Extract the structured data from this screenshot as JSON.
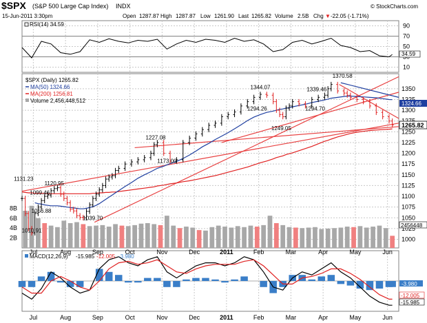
{
  "header": {
    "symbol": "$SPX",
    "name": "(S&P 500 Large Cap Index)",
    "exchange": "INDX",
    "datetime": "15-Jun-2011 3:30pm",
    "open_label": "Open",
    "open": "1287.87",
    "high_label": "High",
    "high": "1287.87",
    "low_label": "Low",
    "low": "1261.90",
    "last_label": "Last",
    "last": "1265.82",
    "volume_label": "Volume",
    "volume": "2.5B",
    "chg_label": "Chg",
    "chg": "-22.05 (-1.71%)",
    "chg_arrow": "▼",
    "brand": "© StockCharts.com"
  },
  "rsi_panel": {
    "label": "RSI(14) 34.59",
    "current_tag": "34.59",
    "ticks": [
      "90",
      "70",
      "50",
      "30",
      "10"
    ]
  },
  "price_panel": {
    "legend_main": "$SPX (Daily) 1265.82",
    "legend_ma50": "MA(50) 1324.66",
    "legend_ma200": "MA(200) 1256.81",
    "legend_volume": "Volume 2,456,448,512",
    "current_tag": "1265.82",
    "ma50_tag": "1324.66",
    "volume_tag": "2456448",
    "price_ticks": [
      "1350",
      "1325",
      "1300",
      "1275",
      "1250",
      "1225",
      "1200",
      "1175",
      "1150",
      "1125",
      "1100",
      "1075",
      "1050",
      "1025",
      "1000"
    ],
    "volume_ticks": [
      "8B",
      "6B",
      "4B",
      "2B"
    ],
    "annotations": [
      "1131.23",
      "1120.95",
      "1099.46",
      "1056.88",
      "1010.91",
      "1039.70",
      "1227.08",
      "1173.00",
      "1344.07",
      "1294.26",
      "1249.05",
      "1339.46",
      "1294.70",
      "1370.58"
    ]
  },
  "macd_panel": {
    "label": "MACD(12,26,9)",
    "macd_value": "-15.985",
    "signal_value": "-12.005",
    "hist_value": "-3.980",
    "tag_hist": "-3.980",
    "tag_signal": "-12.005",
    "tag_macd": "-15.985"
  },
  "x_axis": {
    "labels": [
      "Jul",
      "Aug",
      "Sep",
      "Oct",
      "Nov",
      "Dec",
      "2011",
      "Feb",
      "Mar",
      "Apr",
      "May",
      "Jun"
    ]
  },
  "colors": {
    "up": "#000000",
    "down": "#e02020",
    "ma50": "#1f3fa0",
    "ma200": "#e02020",
    "trend": "#e84040",
    "volume_up": "#a8a8a8",
    "volume_down": "#f08080",
    "hist": "#3a7ec8",
    "macd": "#000000",
    "signal": "#e02020",
    "chg": "#e02020"
  },
  "chart_data": {
    "type": "line",
    "title": "$SPX (S&P 500 Large Cap Index) INDX — Daily",
    "x_unit": "months since 1-Jul-2010",
    "xlim": [
      0,
      11.7
    ],
    "price": {
      "ylim": [
        980,
        1385
      ],
      "x": [
        0,
        0.1,
        0.2,
        0.3,
        0.4,
        0.5,
        0.6,
        0.7,
        0.8,
        0.9,
        1.0,
        1.1,
        1.2,
        1.3,
        1.4,
        1.5,
        1.6,
        1.7,
        1.8,
        1.9,
        2.0,
        2.1,
        2.2,
        2.3,
        2.4,
        2.5,
        2.6,
        2.7,
        2.8,
        2.9,
        3.0,
        3.2,
        3.4,
        3.6,
        3.8,
        4.0,
        4.1,
        4.2,
        4.4,
        4.6,
        4.8,
        5.0,
        5.2,
        5.4,
        5.6,
        5.8,
        6.0,
        6.2,
        6.4,
        6.6,
        6.8,
        7.0,
        7.2,
        7.4,
        7.6,
        7.8,
        7.9,
        8.0,
        8.1,
        8.2,
        8.3,
        8.4,
        8.6,
        8.8,
        9.0,
        9.2,
        9.4,
        9.5,
        9.6,
        9.8,
        10.0,
        10.1,
        10.2,
        10.4,
        10.6,
        10.8,
        11.0,
        11.2,
        11.4,
        11.5
      ],
      "close": [
        1095,
        1060,
        1025,
        1015,
        1060,
        1075,
        1090,
        1100,
        1103,
        1113,
        1118,
        1120,
        1105,
        1095,
        1085,
        1070,
        1066,
        1055,
        1051,
        1050,
        1065,
        1080,
        1095,
        1105,
        1115,
        1125,
        1140,
        1145,
        1148,
        1160,
        1165,
        1175,
        1180,
        1185,
        1190,
        1200,
        1220,
        1225,
        1200,
        1182,
        1185,
        1225,
        1235,
        1245,
        1255,
        1265,
        1270,
        1285,
        1290,
        1296,
        1310,
        1320,
        1330,
        1337,
        1335,
        1320,
        1300,
        1290,
        1285,
        1305,
        1310,
        1320,
        1315,
        1310,
        1325,
        1330,
        1335,
        1350,
        1360,
        1345,
        1340,
        1335,
        1330,
        1325,
        1320,
        1310,
        1295,
        1285,
        1275,
        1265.82
      ],
      "ma50": [
        null,
        null,
        null,
        null,
        1085,
        1083,
        1082,
        1080,
        1079,
        1078,
        1078,
        1078,
        1077,
        1076,
        1075,
        1074,
        1073,
        1072,
        1071,
        1071,
        1072,
        1074,
        1076,
        1079,
        1083,
        1088,
        1093,
        1098,
        1103,
        1108,
        1113,
        1123,
        1132,
        1142,
        1150,
        1157,
        1161,
        1165,
        1170,
        1176,
        1181,
        1188,
        1196,
        1205,
        1215,
        1223,
        1232,
        1240,
        1248,
        1257,
        1266,
        1276,
        1284,
        1290,
        1295,
        1298,
        1300,
        1302,
        1303,
        1305,
        1306,
        1308,
        1311,
        1314,
        1318,
        1321,
        1324,
        1326,
        1328,
        1330,
        1332,
        1333,
        1333,
        1332,
        1331,
        1330,
        1329,
        1327,
        1325,
        1324.66
      ],
      "ma200": [
        1110,
        1109,
        1108,
        1108,
        1107,
        1107,
        1107,
        1107,
        1106,
        1106,
        1106,
        1106,
        1106,
        1106,
        1106,
        1106,
        1106,
        1106,
        1106,
        1106,
        1106,
        1106,
        1107,
        1107,
        1108,
        1108,
        1109,
        1109,
        1110,
        1110,
        1111,
        1113,
        1115,
        1117,
        1119,
        1121,
        1122,
        1124,
        1126,
        1129,
        1131,
        1134,
        1136,
        1139,
        1142,
        1145,
        1148,
        1152,
        1156,
        1160,
        1164,
        1168,
        1173,
        1178,
        1182,
        1187,
        1190,
        1192,
        1194,
        1197,
        1199,
        1201,
        1206,
        1211,
        1216,
        1222,
        1228,
        1230,
        1233,
        1238,
        1242,
        1244,
        1246,
        1249,
        1251,
        1253,
        1254,
        1255,
        1256,
        1256.81
      ],
      "trendlines": [
        {
          "x1": 2.25,
          "y1": 1039.7,
          "x2": 11.7,
          "y2": 1378
        },
        {
          "x1": 3.5,
          "y1": 1213,
          "x2": 11.7,
          "y2": 1262
        },
        {
          "x1": 0.0,
          "y1": 1112,
          "x2": 11.7,
          "y2": 1270
        },
        {
          "x1": 6.2,
          "y1": 1225,
          "x2": 11.7,
          "y2": 1342
        },
        {
          "x1": 9.85,
          "y1": 1360,
          "x2": 11.7,
          "y2": 1281
        }
      ],
      "blue_trendline": {
        "x1": 9.9,
        "y1": 1364,
        "x2": 11.7,
        "y2": 1330
      },
      "labels": [
        {
          "x": 0.05,
          "y": 1131.23,
          "text": "1131.23"
        },
        {
          "x": 1.0,
          "y": 1120.95,
          "text": "1120.95"
        },
        {
          "x": 0.55,
          "y": 1099.46,
          "text": "1099.46"
        },
        {
          "x": 0.6,
          "y": 1056.88,
          "text": "1056.88"
        },
        {
          "x": 0.3,
          "y": 1010.91,
          "text": "1010.91"
        },
        {
          "x": 2.2,
          "y": 1039.7,
          "text": "1039.70"
        },
        {
          "x": 4.15,
          "y": 1227.08,
          "text": "1227.08"
        },
        {
          "x": 4.5,
          "y": 1173.0,
          "text": "1173.00"
        },
        {
          "x": 7.4,
          "y": 1344.07,
          "text": "1344.07"
        },
        {
          "x": 7.3,
          "y": 1294.26,
          "text": "1294.26"
        },
        {
          "x": 8.05,
          "y": 1249.05,
          "text": "1249.05"
        },
        {
          "x": 9.15,
          "y": 1339.46,
          "text": "1339.46"
        },
        {
          "x": 9.1,
          "y": 1294.7,
          "text": "1294.70"
        },
        {
          "x": 9.95,
          "y": 1370.58,
          "text": "1370.58"
        }
      ]
    },
    "volume": {
      "unit": "B shares",
      "ylim": [
        0,
        10
      ],
      "x": [
        0.1,
        0.3,
        0.5,
        0.7,
        0.9,
        1.1,
        1.3,
        1.5,
        1.7,
        1.9,
        2.1,
        2.3,
        2.5,
        2.7,
        2.9,
        3.1,
        3.3,
        3.5,
        3.7,
        3.9,
        4.1,
        4.3,
        4.5,
        4.7,
        4.9,
        5.1,
        5.3,
        5.5,
        5.7,
        5.9,
        6.1,
        6.3,
        6.5,
        6.7,
        6.9,
        7.1,
        7.3,
        7.5,
        7.7,
        7.9,
        8.1,
        8.3,
        8.5,
        8.7,
        8.9,
        9.1,
        9.3,
        9.5,
        9.7,
        9.9,
        10.1,
        10.3,
        10.5,
        10.7,
        10.9,
        11.1,
        11.3,
        11.5
      ],
      "values": [
        7.5,
        8.5,
        6.0,
        5.0,
        4.5,
        4.2,
        5.5,
        5.0,
        5.2,
        4.8,
        4.4,
        4.5,
        4.6,
        4.3,
        4.8,
        4.5,
        4.4,
        4.6,
        4.9,
        5.0,
        4.8,
        4.6,
        6.5,
        4.5,
        4.0,
        4.3,
        4.1,
        3.6,
        3.5,
        4.2,
        4.5,
        4.3,
        4.1,
        4.4,
        4.2,
        4.5,
        4.3,
        4.6,
        6.5,
        5.0,
        4.6,
        4.2,
        4.1,
        4.0,
        4.1,
        4.2,
        3.8,
        3.9,
        4.0,
        4.1,
        4.3,
        4.2,
        4.4,
        4.1,
        4.3,
        4.5,
        4.0,
        2.45
      ]
    },
    "rsi": {
      "ylim": [
        0,
        100
      ],
      "levels": [
        70,
        30
      ],
      "x": [
        0,
        0.3,
        0.6,
        0.9,
        1.2,
        1.5,
        1.8,
        2.1,
        2.4,
        2.7,
        3.0,
        3.3,
        3.6,
        3.9,
        4.2,
        4.5,
        4.8,
        5.1,
        5.4,
        5.7,
        6.0,
        6.3,
        6.6,
        6.9,
        7.2,
        7.5,
        7.8,
        8.1,
        8.4,
        8.7,
        9.0,
        9.3,
        9.6,
        9.9,
        10.2,
        10.5,
        10.8,
        11.1,
        11.4,
        11.5
      ],
      "values": [
        48,
        28,
        60,
        55,
        38,
        35,
        40,
        63,
        58,
        65,
        60,
        57,
        62,
        60,
        64,
        45,
        55,
        62,
        58,
        64,
        62,
        58,
        66,
        60,
        63,
        55,
        40,
        44,
        58,
        62,
        55,
        60,
        66,
        52,
        48,
        40,
        42,
        32,
        30,
        34.59
      ]
    },
    "macd": {
      "ylim": [
        -20,
        20
      ],
      "x": [
        0,
        0.3,
        0.6,
        0.9,
        1.2,
        1.5,
        1.8,
        2.1,
        2.4,
        2.7,
        3.0,
        3.3,
        3.6,
        3.9,
        4.2,
        4.5,
        4.8,
        5.1,
        5.4,
        5.7,
        6.0,
        6.3,
        6.6,
        6.9,
        7.2,
        7.5,
        7.8,
        8.1,
        8.4,
        8.7,
        9.0,
        9.3,
        9.6,
        9.9,
        10.2,
        10.5,
        10.8,
        11.1,
        11.4,
        11.5
      ],
      "macd": [
        -8,
        -12,
        -5,
        6,
        2,
        -4,
        -8,
        -6,
        8,
        14,
        16,
        12,
        10,
        14,
        16,
        6,
        2,
        6,
        10,
        12,
        12,
        10,
        12,
        16,
        14,
        6,
        -4,
        -6,
        2,
        6,
        4,
        8,
        12,
        6,
        2,
        -4,
        -10,
        -14,
        -16,
        -15.985
      ],
      "signal": [
        -4,
        -8,
        -8,
        0,
        3,
        0,
        -4,
        -6,
        0,
        8,
        12,
        13,
        11,
        12,
        14,
        10,
        6,
        5,
        8,
        10,
        11,
        11,
        11,
        13,
        14,
        10,
        4,
        -2,
        -2,
        2,
        3,
        5,
        8,
        8,
        5,
        1,
        -4,
        -9,
        -12,
        -12.005
      ],
      "histogram": [
        -4,
        -4,
        3,
        6,
        -1,
        -4,
        -4,
        0,
        8,
        6,
        4,
        -1,
        -1,
        2,
        2,
        -4,
        -4,
        1,
        2,
        2,
        1,
        -1,
        1,
        3,
        0,
        -4,
        -8,
        -4,
        4,
        4,
        1,
        3,
        4,
        -2,
        -3,
        -5,
        -6,
        -5,
        -4,
        -3.98
      ]
    }
  }
}
